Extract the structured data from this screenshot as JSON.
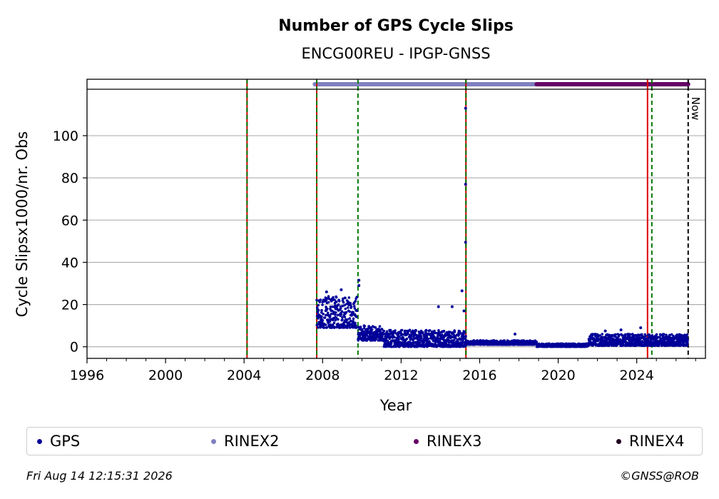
{
  "chart_data": {
    "type": "scatter",
    "title": "Number of GPS Cycle Slips",
    "subtitle": "ENCG00REU - IPGP-GNSS",
    "xlabel": "Year",
    "ylabel": "Cycle Slipsx1000/nr. Obs",
    "xlim": [
      1996,
      2027.5
    ],
    "ylim": [
      -5.5,
      122
    ],
    "xticks": [
      1996,
      2000,
      2004,
      2008,
      2012,
      2016,
      2020,
      2024
    ],
    "yticks": [
      0,
      20,
      40,
      60,
      80,
      100
    ],
    "grid": "horizontal",
    "now_label": "Now",
    "now_x": 2026.62,
    "vertical_lines": [
      {
        "x": 2004.15,
        "style": "green-red-dashed"
      },
      {
        "x": 2007.7,
        "style": "green-red-dashed"
      },
      {
        "x": 2009.8,
        "style": "green-dashed"
      },
      {
        "x": 2015.3,
        "style": "green-red-dashed"
      },
      {
        "x": 2024.55,
        "style": "red-solid"
      },
      {
        "x": 2024.77,
        "style": "green-dashed"
      }
    ],
    "format_bars": [
      {
        "name": "RINEX2",
        "start": 2007.6,
        "end": 2018.9,
        "color": "#8080c0"
      },
      {
        "name": "RINEX3",
        "start": 2018.9,
        "end": 2026.62,
        "color": "#660066"
      }
    ],
    "series": [
      {
        "name": "GPS",
        "color": "#000099",
        "segments": [
          {
            "x_start": 2007.7,
            "x_end": 2009.75,
            "y_min": 9,
            "y_max": 24
          },
          {
            "x_start": 2009.8,
            "x_end": 2011.1,
            "y_min": 3,
            "y_max": 10
          },
          {
            "x_start": 2011.1,
            "x_end": 2015.3,
            "y_min": 0,
            "y_max": 8
          },
          {
            "x_start": 2015.3,
            "x_end": 2018.9,
            "y_min": 1,
            "y_max": 3
          },
          {
            "x_start": 2018.9,
            "x_end": 2021.5,
            "y_min": 0,
            "y_max": 1.5
          },
          {
            "x_start": 2021.5,
            "x_end": 2026.6,
            "y_min": 0.5,
            "y_max": 6
          }
        ],
        "points": [
          {
            "x": 2008.2,
            "y": 26
          },
          {
            "x": 2008.95,
            "y": 27
          },
          {
            "x": 2009.85,
            "y": 31.5
          },
          {
            "x": 2009.85,
            "y": 29
          },
          {
            "x": 2013.9,
            "y": 19
          },
          {
            "x": 2014.6,
            "y": 19
          },
          {
            "x": 2015.1,
            "y": 26.5
          },
          {
            "x": 2015.28,
            "y": 113
          },
          {
            "x": 2015.28,
            "y": 77
          },
          {
            "x": 2015.28,
            "y": 49.5
          },
          {
            "x": 2015.2,
            "y": 17
          },
          {
            "x": 2017.8,
            "y": 6
          },
          {
            "x": 2022.4,
            "y": 7.5
          },
          {
            "x": 2023.2,
            "y": 8
          },
          {
            "x": 2024.2,
            "y": 9
          }
        ]
      }
    ]
  },
  "legend": [
    {
      "label": "GPS",
      "color": "#000099"
    },
    {
      "label": "RINEX2",
      "color": "#8080c0"
    },
    {
      "label": "RINEX3",
      "color": "#660066"
    },
    {
      "label": "RINEX4",
      "color": "#220022"
    }
  ],
  "footer": {
    "timestamp": "Fri Aug 14 12:15:31 2026",
    "credit": "©GNSS@ROB"
  }
}
